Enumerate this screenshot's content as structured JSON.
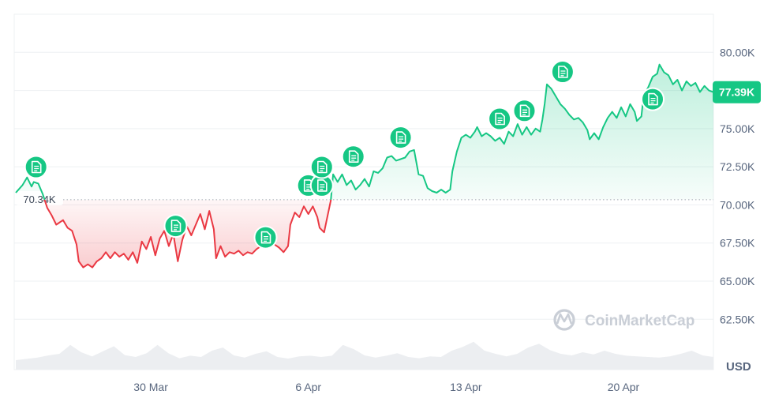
{
  "chart_data": {
    "type": "area",
    "unit": "USD",
    "baseline": 70340,
    "baseline_label": "70.34K",
    "current_value": 77390,
    "current_label": "77.39K",
    "watermark": "CoinMarketCap",
    "ylim": [
      59200,
      82500
    ],
    "y_ticks": [
      {
        "value": 80000,
        "label": "80.00K"
      },
      {
        "value": 77500,
        "label": "77.50K"
      },
      {
        "value": 75000,
        "label": "75.00K"
      },
      {
        "value": 72500,
        "label": "72.50K"
      },
      {
        "value": 70000,
        "label": "70.00K"
      },
      {
        "value": 67500,
        "label": "67.50K"
      },
      {
        "value": 65000,
        "label": "65.00K"
      },
      {
        "value": 62500,
        "label": "62.50K"
      }
    ],
    "x_ticks": [
      {
        "day": 6,
        "label": "30 Mar"
      },
      {
        "day": 13,
        "label": "6 Apr"
      },
      {
        "day": 20,
        "label": "13 Apr"
      },
      {
        "day": 27,
        "label": "20 Apr"
      }
    ],
    "x_note": "day 0 = 24 Mar, day 31 = 24 Apr",
    "xlim": [
      0,
      31
    ],
    "series": [
      {
        "name": "Price",
        "points": [
          [
            0.0,
            70800
          ],
          [
            0.3,
            71300
          ],
          [
            0.5,
            71800
          ],
          [
            0.7,
            71200
          ],
          [
            0.8,
            71500
          ],
          [
            1.0,
            71400
          ],
          [
            1.2,
            70700
          ],
          [
            1.4,
            69800
          ],
          [
            1.6,
            69300
          ],
          [
            1.8,
            68700
          ],
          [
            2.1,
            69000
          ],
          [
            2.3,
            68500
          ],
          [
            2.5,
            68300
          ],
          [
            2.7,
            67400
          ],
          [
            2.8,
            66300
          ],
          [
            3.0,
            65900
          ],
          [
            3.2,
            66100
          ],
          [
            3.4,
            65900
          ],
          [
            3.6,
            66300
          ],
          [
            3.8,
            66500
          ],
          [
            4.0,
            66900
          ],
          [
            4.2,
            66500
          ],
          [
            4.4,
            66900
          ],
          [
            4.6,
            66600
          ],
          [
            4.8,
            66800
          ],
          [
            5.0,
            66400
          ],
          [
            5.2,
            66900
          ],
          [
            5.4,
            66200
          ],
          [
            5.6,
            67600
          ],
          [
            5.8,
            67100
          ],
          [
            6.0,
            67900
          ],
          [
            6.2,
            66700
          ],
          [
            6.4,
            67800
          ],
          [
            6.6,
            68300
          ],
          [
            6.8,
            67300
          ],
          [
            7.0,
            68100
          ],
          [
            7.2,
            66300
          ],
          [
            7.4,
            67700
          ],
          [
            7.6,
            68600
          ],
          [
            7.8,
            68000
          ],
          [
            8.0,
            68700
          ],
          [
            8.2,
            69400
          ],
          [
            8.4,
            68400
          ],
          [
            8.6,
            69600
          ],
          [
            8.8,
            68400
          ],
          [
            8.9,
            66500
          ],
          [
            9.1,
            67300
          ],
          [
            9.3,
            66600
          ],
          [
            9.5,
            66900
          ],
          [
            9.7,
            66800
          ],
          [
            9.9,
            67000
          ],
          [
            10.1,
            66700
          ],
          [
            10.3,
            66900
          ],
          [
            10.5,
            66800
          ],
          [
            10.7,
            67100
          ],
          [
            10.9,
            67300
          ],
          [
            11.1,
            67300
          ],
          [
            11.3,
            67600
          ],
          [
            11.5,
            67400
          ],
          [
            11.7,
            67200
          ],
          [
            11.9,
            66900
          ],
          [
            12.1,
            67300
          ],
          [
            12.2,
            68700
          ],
          [
            12.4,
            69500
          ],
          [
            12.6,
            69200
          ],
          [
            12.8,
            69900
          ],
          [
            13.0,
            69400
          ],
          [
            13.2,
            69900
          ],
          [
            13.4,
            69200
          ],
          [
            13.5,
            68500
          ],
          [
            13.7,
            68200
          ],
          [
            13.8,
            68900
          ],
          [
            14.0,
            70300
          ],
          [
            14.1,
            72000
          ],
          [
            14.3,
            71500
          ],
          [
            14.5,
            72000
          ],
          [
            14.7,
            71300
          ],
          [
            14.9,
            71600
          ],
          [
            15.1,
            71000
          ],
          [
            15.3,
            71300
          ],
          [
            15.5,
            71700
          ],
          [
            15.7,
            71200
          ],
          [
            15.9,
            72200
          ],
          [
            16.1,
            72100
          ],
          [
            16.3,
            72400
          ],
          [
            16.5,
            73100
          ],
          [
            16.7,
            73200
          ],
          [
            16.9,
            72900
          ],
          [
            17.1,
            73000
          ],
          [
            17.3,
            73100
          ],
          [
            17.5,
            73500
          ],
          [
            17.7,
            73600
          ],
          [
            17.9,
            72000
          ],
          [
            18.1,
            71900
          ],
          [
            18.3,
            71100
          ],
          [
            18.5,
            70900
          ],
          [
            18.7,
            70800
          ],
          [
            18.9,
            71000
          ],
          [
            19.1,
            70800
          ],
          [
            19.3,
            71000
          ],
          [
            19.4,
            72200
          ],
          [
            19.6,
            73500
          ],
          [
            19.8,
            74400
          ],
          [
            20.0,
            74600
          ],
          [
            20.2,
            74400
          ],
          [
            20.4,
            74800
          ],
          [
            20.5,
            75100
          ],
          [
            20.7,
            74500
          ],
          [
            20.9,
            74700
          ],
          [
            21.1,
            74500
          ],
          [
            21.3,
            74200
          ],
          [
            21.5,
            74400
          ],
          [
            21.7,
            74000
          ],
          [
            21.9,
            74800
          ],
          [
            22.1,
            74500
          ],
          [
            22.3,
            75300
          ],
          [
            22.5,
            74600
          ],
          [
            22.7,
            75100
          ],
          [
            22.9,
            74600
          ],
          [
            23.1,
            75000
          ],
          [
            23.3,
            74800
          ],
          [
            23.4,
            75600
          ],
          [
            23.5,
            76600
          ],
          [
            23.6,
            77900
          ],
          [
            23.8,
            77600
          ],
          [
            24.0,
            77100
          ],
          [
            24.2,
            76600
          ],
          [
            24.4,
            76300
          ],
          [
            24.6,
            75900
          ],
          [
            24.8,
            75600
          ],
          [
            25.0,
            75700
          ],
          [
            25.2,
            75400
          ],
          [
            25.4,
            74900
          ],
          [
            25.5,
            74300
          ],
          [
            25.7,
            74700
          ],
          [
            25.9,
            74300
          ],
          [
            26.1,
            75100
          ],
          [
            26.3,
            75700
          ],
          [
            26.5,
            76100
          ],
          [
            26.7,
            75700
          ],
          [
            26.9,
            76400
          ],
          [
            27.1,
            75800
          ],
          [
            27.3,
            76600
          ],
          [
            27.5,
            76100
          ],
          [
            27.6,
            75500
          ],
          [
            27.8,
            75800
          ],
          [
            27.9,
            77200
          ],
          [
            28.1,
            77700
          ],
          [
            28.3,
            78400
          ],
          [
            28.5,
            78600
          ],
          [
            28.6,
            79200
          ],
          [
            28.8,
            78700
          ],
          [
            29.0,
            78500
          ],
          [
            29.2,
            77900
          ],
          [
            29.4,
            78200
          ],
          [
            29.6,
            77500
          ],
          [
            29.8,
            78100
          ],
          [
            30.0,
            77800
          ],
          [
            30.2,
            78000
          ],
          [
            30.4,
            77400
          ],
          [
            30.6,
            77800
          ],
          [
            30.8,
            77500
          ],
          [
            31.0,
            77390
          ]
        ]
      },
      {
        "name": "Volume",
        "values": [
          0.3,
          0.34,
          0.38,
          0.45,
          0.5,
          0.78,
          0.55,
          0.42,
          0.58,
          0.74,
          0.46,
          0.4,
          0.52,
          0.78,
          0.52,
          0.36,
          0.44,
          0.4,
          0.6,
          0.7,
          0.45,
          0.38,
          0.5,
          0.58,
          0.4,
          0.35,
          0.42,
          0.44,
          0.4,
          0.44,
          0.78,
          0.65,
          0.45,
          0.38,
          0.44,
          0.52,
          0.4,
          0.36,
          0.42,
          0.4,
          0.6,
          0.72,
          0.88,
          0.6,
          0.5,
          0.42,
          0.5,
          0.7,
          0.82,
          0.62,
          0.5,
          0.45,
          0.55,
          0.48,
          0.6,
          0.5,
          0.44,
          0.42,
          0.4,
          0.38,
          0.42,
          0.5,
          0.6,
          0.45,
          0.4
        ]
      }
    ],
    "news_events": [
      {
        "day": 0.9,
        "value": 72480
      },
      {
        "day": 7.1,
        "value": 68620
      },
      {
        "day": 11.1,
        "value": 67870
      },
      {
        "day": 13.0,
        "value": 71270
      },
      {
        "day": 13.6,
        "value": 71270
      },
      {
        "day": 13.6,
        "value": 72480
      },
      {
        "day": 15.0,
        "value": 73170
      },
      {
        "day": 17.1,
        "value": 74420
      },
      {
        "day": 21.5,
        "value": 75640
      },
      {
        "day": 22.6,
        "value": 76170
      },
      {
        "day": 24.3,
        "value": 78720
      },
      {
        "day": 28.3,
        "value": 76930
      }
    ]
  }
}
